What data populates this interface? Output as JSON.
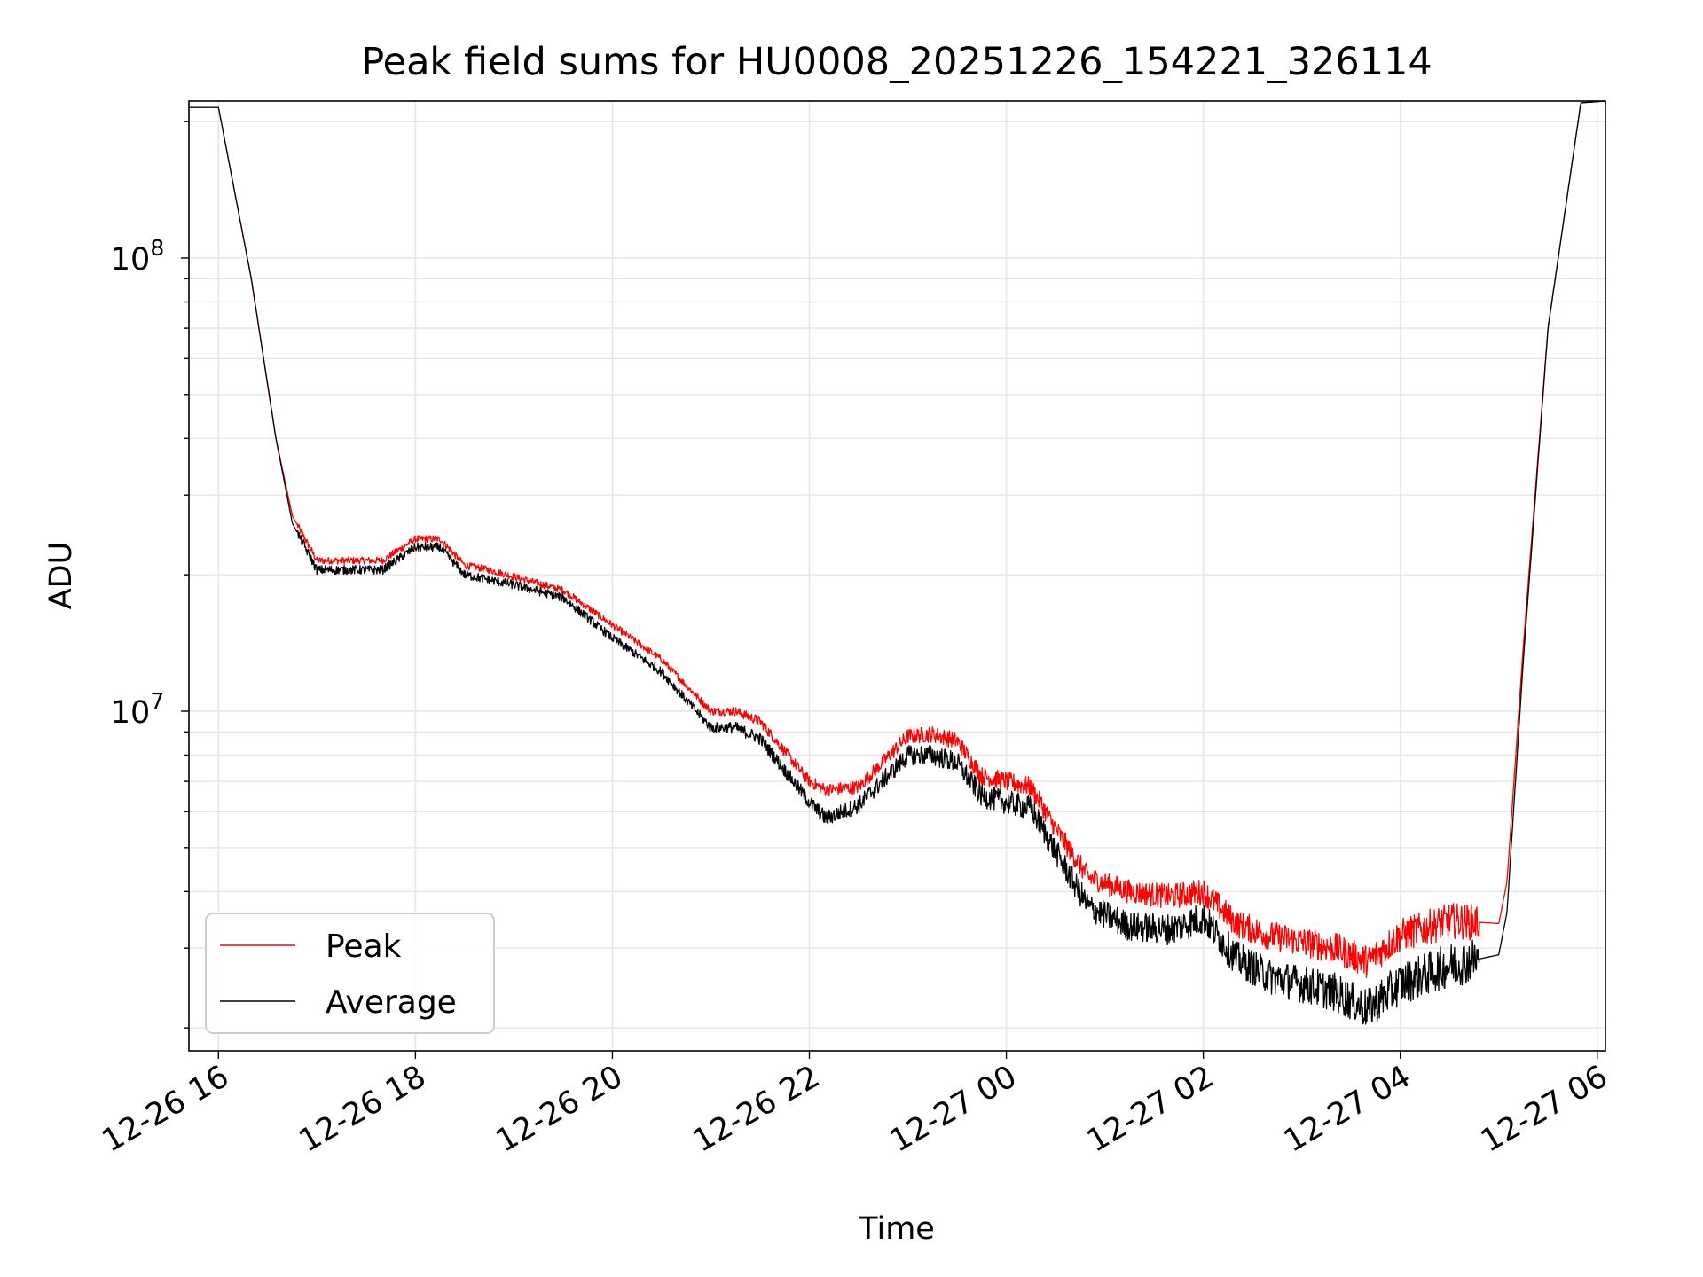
{
  "chart_data": {
    "type": "line",
    "title": "Peak field sums for HU0008_20251226_154221_326114",
    "xlabel": "Time",
    "ylabel": "ADU",
    "yscale": "log",
    "xlim": [
      "2025-12-26 15:42",
      "2025-12-27 06:05"
    ],
    "ylim": [
      1780000,
      222000000
    ],
    "x_tick_labels": [
      "12-26 16",
      "12-26 18",
      "12-26 20",
      "12-26 22",
      "12-27 00",
      "12-27 02",
      "12-27 04",
      "12-27 06"
    ],
    "x_ticks": [
      "2025-12-26 16:00",
      "2025-12-26 18:00",
      "2025-12-26 20:00",
      "2025-12-26 22:00",
      "2025-12-27 00:00",
      "2025-12-27 02:00",
      "2025-12-27 04:00",
      "2025-12-27 06:00"
    ],
    "y_tick_labels": [
      {
        "value": 10000000,
        "base": "10",
        "exp": "7"
      },
      {
        "value": 100000000,
        "base": "10",
        "exp": "8"
      }
    ],
    "grid": true,
    "legend": {
      "position": "lower-left"
    },
    "series": [
      {
        "name": "Peak",
        "color": "#ff0000",
        "x": [
          "2025-12-26 15:42",
          "2025-12-26 16:00",
          "2025-12-26 16:20",
          "2025-12-26 16:35",
          "2025-12-26 16:45",
          "2025-12-26 17:00",
          "2025-12-26 17:20",
          "2025-12-26 17:40",
          "2025-12-26 18:00",
          "2025-12-26 18:15",
          "2025-12-26 18:30",
          "2025-12-26 18:45",
          "2025-12-26 19:00",
          "2025-12-26 19:30",
          "2025-12-26 20:00",
          "2025-12-26 20:30",
          "2025-12-26 21:00",
          "2025-12-26 21:15",
          "2025-12-26 21:30",
          "2025-12-26 22:00",
          "2025-12-26 22:10",
          "2025-12-26 22:30",
          "2025-12-26 23:00",
          "2025-12-26 23:15",
          "2025-12-26 23:30",
          "2025-12-26 23:45",
          "2025-12-27 00:00",
          "2025-12-27 00:15",
          "2025-12-27 00:30",
          "2025-12-27 00:50",
          "2025-12-27 01:15",
          "2025-12-27 01:40",
          "2025-12-27 02:00",
          "2025-12-27 02:20",
          "2025-12-27 02:40",
          "2025-12-27 03:00",
          "2025-12-27 03:20",
          "2025-12-27 03:40",
          "2025-12-27 04:00",
          "2025-12-27 04:30",
          "2025-12-27 05:00",
          "2025-12-27 05:05",
          "2025-12-27 05:15",
          "2025-12-27 05:30",
          "2025-12-27 05:50",
          "2025-12-27 06:05"
        ],
        "values": [
          215000000,
          215000000,
          90000000,
          40000000,
          27000000,
          21500000,
          21500000,
          21500000,
          24000000,
          24000000,
          21000000,
          20500000,
          19800000,
          18500000,
          15500000,
          13000000,
          10000000,
          10000000,
          9500000,
          7000000,
          6700000,
          6800000,
          8800000,
          8900000,
          8600000,
          7200000,
          7000000,
          6800000,
          5500000,
          4300000,
          4000000,
          3900000,
          4000000,
          3400000,
          3200000,
          3100000,
          3000000,
          2800000,
          3200000,
          3450000,
          3400000,
          4200000,
          14000000,
          70000000,
          220000000,
          222000000
        ]
      },
      {
        "name": "Average",
        "color": "#000000",
        "x": [
          "2025-12-26 15:42",
          "2025-12-26 16:00",
          "2025-12-26 16:20",
          "2025-12-26 16:35",
          "2025-12-26 16:45",
          "2025-12-26 17:00",
          "2025-12-26 17:20",
          "2025-12-26 17:40",
          "2025-12-26 18:00",
          "2025-12-26 18:15",
          "2025-12-26 18:30",
          "2025-12-26 18:45",
          "2025-12-26 19:00",
          "2025-12-26 19:30",
          "2025-12-26 20:00",
          "2025-12-26 20:30",
          "2025-12-26 21:00",
          "2025-12-26 21:15",
          "2025-12-26 21:30",
          "2025-12-26 22:00",
          "2025-12-26 22:10",
          "2025-12-26 22:30",
          "2025-12-26 23:00",
          "2025-12-26 23:15",
          "2025-12-26 23:30",
          "2025-12-26 23:45",
          "2025-12-27 00:00",
          "2025-12-27 00:15",
          "2025-12-27 00:30",
          "2025-12-27 00:50",
          "2025-12-27 01:15",
          "2025-12-27 01:40",
          "2025-12-27 02:00",
          "2025-12-27 02:20",
          "2025-12-27 02:40",
          "2025-12-27 03:00",
          "2025-12-27 03:20",
          "2025-12-27 03:40",
          "2025-12-27 04:00",
          "2025-12-27 04:30",
          "2025-12-27 05:00",
          "2025-12-27 05:05",
          "2025-12-27 05:15",
          "2025-12-27 05:30",
          "2025-12-27 05:50",
          "2025-12-27 06:05"
        ],
        "values": [
          215000000,
          215000000,
          90000000,
          40000000,
          26000000,
          20500000,
          20500000,
          20500000,
          23000000,
          23000000,
          20000000,
          19500000,
          19000000,
          17800000,
          14500000,
          12200000,
          9200000,
          9200000,
          8700000,
          6300000,
          5800000,
          6200000,
          8000000,
          8000000,
          7700000,
          6500000,
          6300000,
          6100000,
          4900000,
          3700000,
          3350000,
          3300000,
          3500000,
          2850000,
          2600000,
          2500000,
          2400000,
          2200000,
          2500000,
          2750000,
          2900000,
          3600000,
          13000000,
          70000000,
          220000000,
          222000000
        ]
      }
    ]
  }
}
